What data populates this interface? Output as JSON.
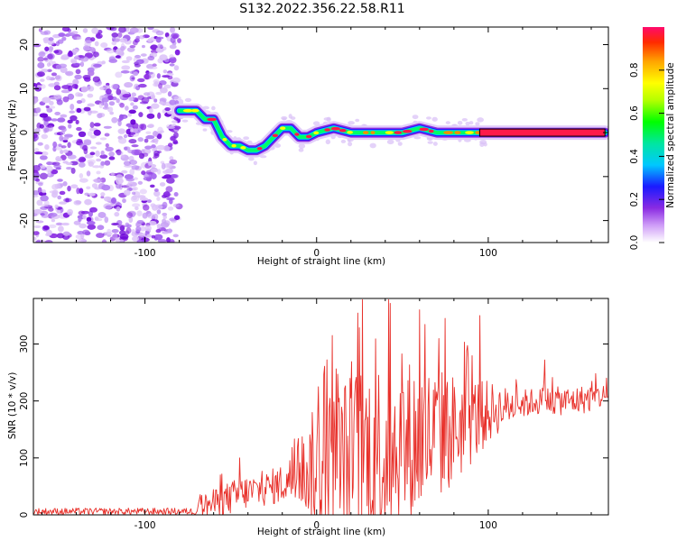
{
  "title": "S132.2022.356.22.58.R11",
  "chart_data": [
    {
      "type": "heatmap",
      "name": "spectrogram",
      "xlabel": "Height of straight line (km)",
      "ylabel": "Frequency (Hz)",
      "xlim": [
        -165,
        170
      ],
      "ylim": [
        -25,
        24
      ],
      "xticks": [
        -100,
        0,
        100
      ],
      "xtick_labels": [
        "-100",
        "0",
        "100"
      ],
      "yticks": [
        -20,
        -10,
        0,
        10,
        20
      ],
      "ytick_labels": [
        "-20",
        "-10",
        "0",
        "10",
        "20"
      ],
      "noise_region_x": [
        -165,
        -80
      ],
      "ridge": {
        "x": [
          -80,
          -75,
          -70,
          -65,
          -60,
          -55,
          -50,
          -45,
          -40,
          -35,
          -30,
          -25,
          -20,
          -15,
          -10,
          -5,
          0,
          10,
          20,
          30,
          40,
          50,
          60,
          70,
          80,
          90,
          95,
          100,
          120,
          140,
          160,
          168
        ],
        "y": [
          5,
          5,
          5,
          3,
          3,
          -1,
          -3,
          -3,
          -4,
          -4,
          -3,
          -1,
          1,
          1,
          -1,
          -1,
          0,
          1,
          0,
          0,
          0,
          0,
          1,
          0,
          0,
          0,
          0,
          0,
          0,
          0,
          0,
          0
        ]
      },
      "colorbar": {
        "label": "Normalized spectral amplitude",
        "range": [
          0,
          1
        ],
        "ticks": [
          0.0,
          0.2,
          0.4,
          0.6,
          0.8
        ],
        "tick_labels": [
          "0.0",
          "0.2",
          "0.4",
          "0.6",
          "0.8"
        ]
      }
    },
    {
      "type": "line",
      "name": "snr",
      "color": "#e8302a",
      "xlabel": "Height of straight line (km)",
      "ylabel": "SNR (10 * v/v)",
      "xlim": [
        -165,
        170
      ],
      "ylim": [
        0,
        380
      ],
      "xticks": [
        -100,
        0,
        100
      ],
      "xtick_labels": [
        "-100",
        "0",
        "100"
      ],
      "yticks": [
        0,
        100,
        200,
        300
      ],
      "ytick_labels": [
        "0",
        "100",
        "200",
        "300"
      ],
      "envelope": {
        "x": [
          -165,
          -70,
          -68,
          -60,
          -50,
          -40,
          -30,
          -20,
          -10,
          -5,
          0,
          10,
          20,
          30,
          40,
          50,
          60,
          70,
          80,
          90,
          100,
          110,
          120,
          130,
          140,
          150,
          160,
          170
        ],
        "base": [
          6,
          6,
          15,
          20,
          30,
          40,
          45,
          55,
          70,
          75,
          80,
          85,
          95,
          105,
          110,
          120,
          130,
          140,
          150,
          165,
          180,
          190,
          195,
          200,
          200,
          200,
          205,
          210
        ],
        "amp": [
          6,
          6,
          20,
          25,
          30,
          30,
          30,
          35,
          50,
          80,
          130,
          140,
          160,
          170,
          170,
          160,
          140,
          120,
          100,
          80,
          55,
          35,
          25,
          25,
          25,
          25,
          25,
          20
        ]
      },
      "peaks": [
        {
          "x": -45,
          "y": 100
        },
        {
          "x": 1,
          "y": 225
        },
        {
          "x": 9,
          "y": 315
        },
        {
          "x": 42,
          "y": 378
        },
        {
          "x": 60,
          "y": 360
        },
        {
          "x": 75,
          "y": 345
        },
        {
          "x": 95,
          "y": 350
        },
        {
          "x": 133,
          "y": 272
        }
      ]
    }
  ]
}
